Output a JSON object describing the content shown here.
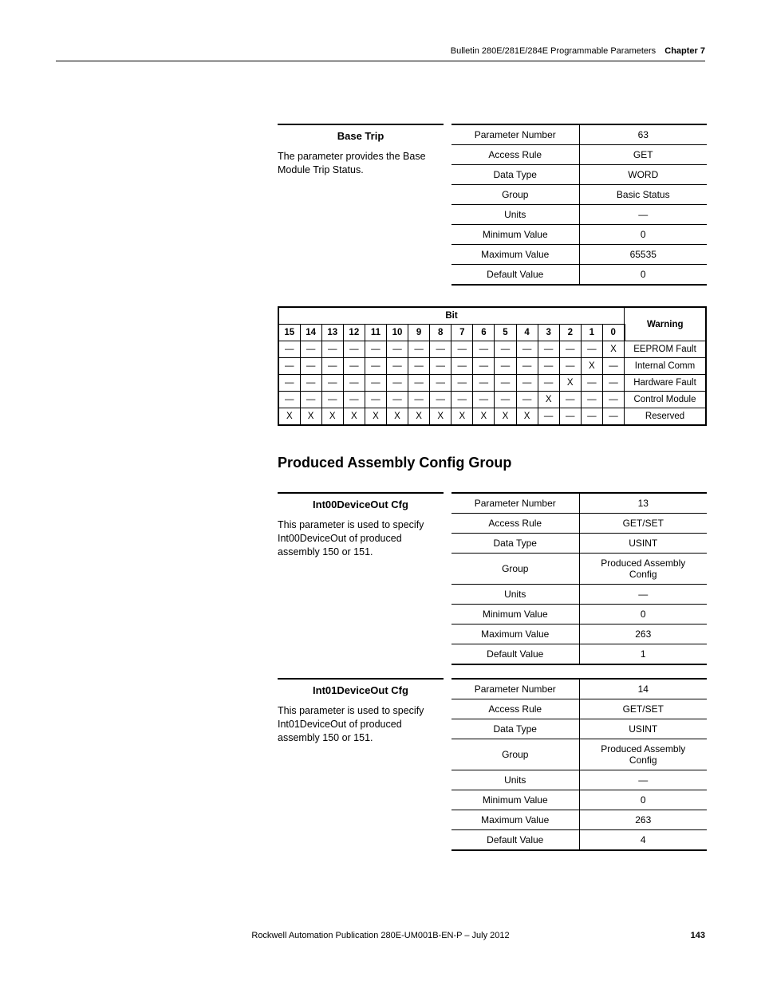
{
  "header": {
    "breadcrumb": "Bulletin 280E/281E/284E Programmable Parameters",
    "chapter_label": "Chapter 7"
  },
  "param_basetrip": {
    "name": "Base Trip",
    "desc": "The parameter provides the Base Module Trip Status.",
    "rows": [
      {
        "k": "Parameter Number",
        "v": "63"
      },
      {
        "k": "Access Rule",
        "v": "GET"
      },
      {
        "k": "Data Type",
        "v": "WORD"
      },
      {
        "k": "Group",
        "v": "Basic Status"
      },
      {
        "k": "Units",
        "v": "—"
      },
      {
        "k": "Minimum Value",
        "v": "0"
      },
      {
        "k": "Maximum Value",
        "v": "65535"
      },
      {
        "k": "Default Value",
        "v": "0"
      }
    ]
  },
  "bit_table": {
    "bit_header": "Bit",
    "warn_header": "Warning",
    "bits": [
      "15",
      "14",
      "13",
      "12",
      "11",
      "10",
      "9",
      "8",
      "7",
      "6",
      "5",
      "4",
      "3",
      "2",
      "1",
      "0"
    ],
    "rows": [
      {
        "cells": [
          "—",
          "—",
          "—",
          "—",
          "—",
          "—",
          "—",
          "—",
          "—",
          "—",
          "—",
          "—",
          "—",
          "—",
          "—",
          "X"
        ],
        "warn": "EEPROM Fault"
      },
      {
        "cells": [
          "—",
          "—",
          "—",
          "—",
          "—",
          "—",
          "—",
          "—",
          "—",
          "—",
          "—",
          "—",
          "—",
          "—",
          "X",
          "—"
        ],
        "warn": "Internal Comm"
      },
      {
        "cells": [
          "—",
          "—",
          "—",
          "—",
          "—",
          "—",
          "—",
          "—",
          "—",
          "—",
          "—",
          "—",
          "—",
          "X",
          "—",
          "—"
        ],
        "warn": "Hardware Fault"
      },
      {
        "cells": [
          "—",
          "—",
          "—",
          "—",
          "—",
          "—",
          "—",
          "—",
          "—",
          "—",
          "—",
          "—",
          "X",
          "—",
          "—",
          "—"
        ],
        "warn": "Control Module"
      },
      {
        "cells": [
          "X",
          "X",
          "X",
          "X",
          "X",
          "X",
          "X",
          "X",
          "X",
          "X",
          "X",
          "X",
          "—",
          "—",
          "—",
          "—"
        ],
        "warn": "Reserved"
      }
    ]
  },
  "section_heading": "Produced Assembly Config Group",
  "param_int00": {
    "name": "Int00DeviceOut Cfg",
    "desc": "This parameter is used to specify Int00DeviceOut of produced assembly 150 or 151.",
    "rows": [
      {
        "k": "Parameter Number",
        "v": "13"
      },
      {
        "k": "Access Rule",
        "v": "GET/SET"
      },
      {
        "k": "Data Type",
        "v": "USINT"
      },
      {
        "k": "Group",
        "v": "Produced Assembly Config"
      },
      {
        "k": "Units",
        "v": "—"
      },
      {
        "k": "Minimum Value",
        "v": "0"
      },
      {
        "k": "Maximum Value",
        "v": "263"
      },
      {
        "k": "Default Value",
        "v": "1"
      }
    ]
  },
  "param_int01": {
    "name": "Int01DeviceOut Cfg",
    "desc": "This parameter is used to specify Int01DeviceOut of produced assembly 150 or 151.",
    "rows": [
      {
        "k": "Parameter Number",
        "v": "14"
      },
      {
        "k": "Access Rule",
        "v": "GET/SET"
      },
      {
        "k": "Data Type",
        "v": "USINT"
      },
      {
        "k": "Group",
        "v": "Produced Assembly Config"
      },
      {
        "k": "Units",
        "v": "—"
      },
      {
        "k": "Minimum Value",
        "v": "0"
      },
      {
        "k": "Maximum Value",
        "v": "263"
      },
      {
        "k": "Default Value",
        "v": "4"
      }
    ]
  },
  "footer": {
    "pub": "Rockwell Automation Publication 280E-UM001B-EN-P – July 2012",
    "page": "143"
  }
}
